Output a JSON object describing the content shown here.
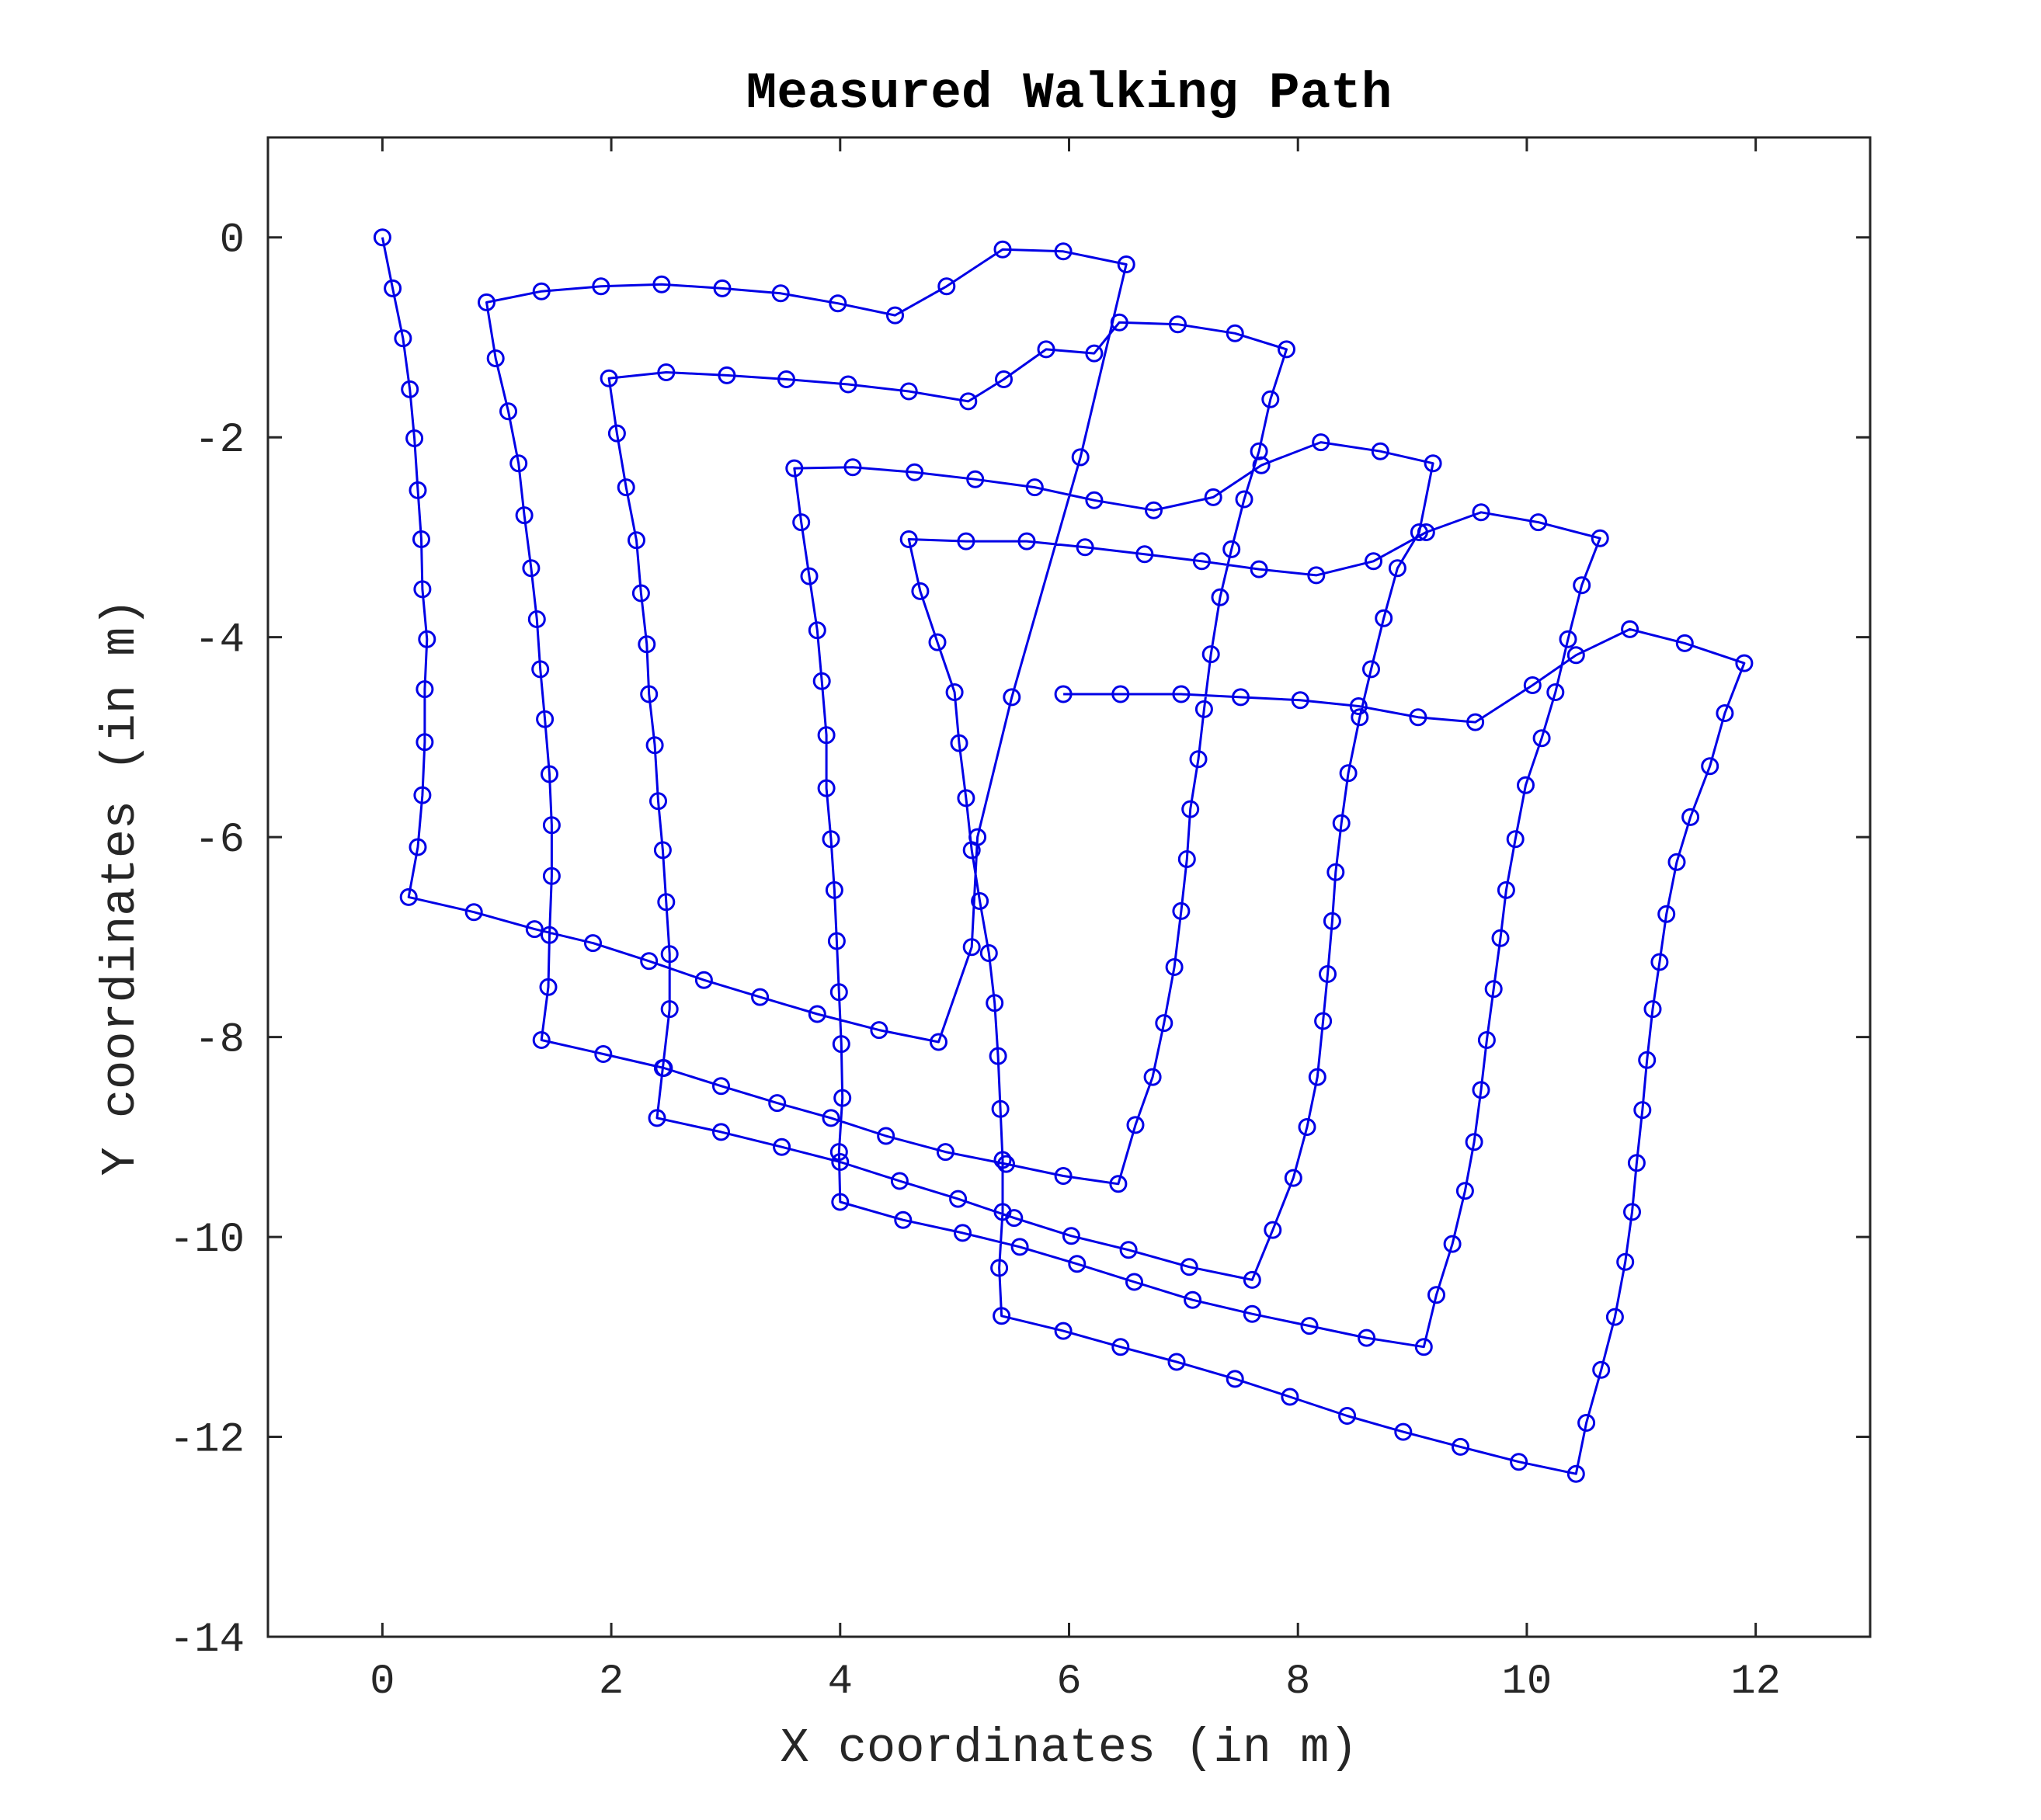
{
  "chart_data": {
    "type": "line",
    "title": "Measured Walking Path",
    "xlabel": "X coordinates (in m)",
    "ylabel": "Y coordinates (in m)",
    "xlim": [
      -1,
      13
    ],
    "ylim": [
      -14,
      1
    ],
    "xticks": [
      0,
      2,
      4,
      6,
      8,
      10,
      12
    ],
    "yticks": [
      0,
      -2,
      -4,
      -6,
      -8,
      -10,
      -12,
      -14
    ],
    "grid": false,
    "legend": "none",
    "marker": "circle",
    "colors": {
      "series": "#0000e6",
      "axes": "#262626",
      "background": "#ffffff"
    },
    "series": [
      {
        "points": [
          [
            0.0,
            0.0
          ],
          [
            0.09,
            -0.51
          ],
          [
            0.18,
            -1.01
          ],
          [
            0.24,
            -1.52
          ],
          [
            0.28,
            -2.01
          ],
          [
            0.31,
            -2.53
          ],
          [
            0.34,
            -3.02
          ],
          [
            0.35,
            -3.52
          ],
          [
            0.39,
            -4.02
          ],
          [
            0.37,
            -4.52
          ],
          [
            0.37,
            -5.05
          ],
          [
            0.35,
            -5.58
          ],
          [
            0.31,
            -6.1
          ],
          [
            0.23,
            -6.6
          ],
          [
            0.8,
            -6.75
          ],
          [
            1.33,
            -6.92
          ],
          [
            1.84,
            -7.06
          ],
          [
            2.33,
            -7.24
          ],
          [
            2.81,
            -7.43
          ],
          [
            3.3,
            -7.6
          ],
          [
            3.8,
            -7.77
          ],
          [
            4.34,
            -7.93
          ],
          [
            4.86,
            -8.05
          ],
          [
            5.15,
            -7.1
          ],
          [
            5.2,
            -6.0
          ],
          [
            5.5,
            -4.6
          ],
          [
            6.1,
            -2.2
          ],
          [
            6.5,
            -0.27
          ],
          [
            5.95,
            -0.14
          ],
          [
            5.42,
            -0.12
          ],
          [
            4.93,
            -0.49
          ],
          [
            4.48,
            -0.78
          ],
          [
            3.98,
            -0.66
          ],
          [
            3.48,
            -0.56
          ],
          [
            2.97,
            -0.51
          ],
          [
            2.44,
            -0.47
          ],
          [
            1.91,
            -0.49
          ],
          [
            1.39,
            -0.54
          ],
          [
            0.91,
            -0.65
          ],
          [
            0.99,
            -1.21
          ],
          [
            1.1,
            -1.74
          ],
          [
            1.19,
            -2.26
          ],
          [
            1.24,
            -2.78
          ],
          [
            1.3,
            -3.31
          ],
          [
            1.35,
            -3.82
          ],
          [
            1.38,
            -4.32
          ],
          [
            1.42,
            -4.82
          ],
          [
            1.46,
            -5.37
          ],
          [
            1.48,
            -5.88
          ],
          [
            1.48,
            -6.39
          ],
          [
            1.46,
            -6.98
          ],
          [
            1.45,
            -7.5
          ],
          [
            1.39,
            -8.03
          ],
          [
            1.93,
            -8.17
          ],
          [
            2.46,
            -8.31
          ],
          [
            2.96,
            -8.49
          ],
          [
            3.45,
            -8.66
          ],
          [
            3.92,
            -8.81
          ],
          [
            4.4,
            -8.99
          ],
          [
            4.92,
            -9.15
          ],
          [
            5.45,
            -9.27
          ],
          [
            5.95,
            -9.39
          ],
          [
            6.43,
            -9.47
          ],
          [
            6.58,
            -8.88
          ],
          [
            6.73,
            -8.4
          ],
          [
            6.83,
            -7.86
          ],
          [
            6.92,
            -7.3
          ],
          [
            6.98,
            -6.74
          ],
          [
            7.03,
            -6.22
          ],
          [
            7.06,
            -5.72
          ],
          [
            7.13,
            -5.22
          ],
          [
            7.18,
            -4.72
          ],
          [
            7.24,
            -4.17
          ],
          [
            7.32,
            -3.6
          ],
          [
            7.42,
            -3.12
          ],
          [
            7.53,
            -2.62
          ],
          [
            7.66,
            -2.14
          ],
          [
            7.76,
            -1.62
          ],
          [
            7.9,
            -1.12
          ],
          [
            7.45,
            -0.96
          ],
          [
            6.95,
            -0.87
          ],
          [
            6.44,
            -0.85
          ],
          [
            6.22,
            -1.16
          ],
          [
            5.8,
            -1.12
          ],
          [
            5.43,
            -1.42
          ],
          [
            5.12,
            -1.64
          ],
          [
            4.6,
            -1.54
          ],
          [
            4.07,
            -1.47
          ],
          [
            3.53,
            -1.42
          ],
          [
            3.01,
            -1.38
          ],
          [
            2.48,
            -1.35
          ],
          [
            1.98,
            -1.41
          ],
          [
            2.05,
            -1.96
          ],
          [
            2.13,
            -2.5
          ],
          [
            2.22,
            -3.03
          ],
          [
            2.26,
            -3.56
          ],
          [
            2.31,
            -4.07
          ],
          [
            2.33,
            -4.57
          ],
          [
            2.38,
            -5.08
          ],
          [
            2.41,
            -5.64
          ],
          [
            2.45,
            -6.13
          ],
          [
            2.48,
            -6.65
          ],
          [
            2.51,
            -7.17
          ],
          [
            2.51,
            -7.72
          ],
          [
            2.45,
            -8.31
          ],
          [
            2.4,
            -8.81
          ],
          [
            2.96,
            -8.95
          ],
          [
            3.49,
            -9.1
          ],
          [
            4.0,
            -9.25
          ],
          [
            4.52,
            -9.44
          ],
          [
            5.03,
            -9.62
          ],
          [
            5.52,
            -9.81
          ],
          [
            6.02,
            -9.99
          ],
          [
            6.52,
            -10.13
          ],
          [
            7.05,
            -10.3
          ],
          [
            7.6,
            -10.43
          ],
          [
            7.78,
            -9.93
          ],
          [
            7.96,
            -9.41
          ],
          [
            8.08,
            -8.9
          ],
          [
            8.17,
            -8.4
          ],
          [
            8.22,
            -7.84
          ],
          [
            8.26,
            -7.37
          ],
          [
            8.3,
            -6.84
          ],
          [
            8.33,
            -6.35
          ],
          [
            8.38,
            -5.86
          ],
          [
            8.44,
            -5.36
          ],
          [
            8.54,
            -4.8
          ],
          [
            8.64,
            -4.32
          ],
          [
            8.75,
            -3.81
          ],
          [
            8.87,
            -3.31
          ],
          [
            9.06,
            -2.95
          ],
          [
            9.18,
            -2.26
          ],
          [
            8.72,
            -2.14
          ],
          [
            8.2,
            -2.05
          ],
          [
            7.68,
            -2.28
          ],
          [
            7.26,
            -2.6
          ],
          [
            6.74,
            -2.73
          ],
          [
            6.22,
            -2.63
          ],
          [
            5.7,
            -2.5
          ],
          [
            5.18,
            -2.42
          ],
          [
            4.65,
            -2.35
          ],
          [
            4.11,
            -2.3
          ],
          [
            3.6,
            -2.31
          ],
          [
            3.66,
            -2.85
          ],
          [
            3.73,
            -3.39
          ],
          [
            3.8,
            -3.93
          ],
          [
            3.84,
            -4.44
          ],
          [
            3.88,
            -4.98
          ],
          [
            3.88,
            -5.51
          ],
          [
            3.92,
            -6.02
          ],
          [
            3.95,
            -6.53
          ],
          [
            3.97,
            -7.04
          ],
          [
            3.99,
            -7.55
          ],
          [
            4.01,
            -8.07
          ],
          [
            4.02,
            -8.61
          ],
          [
            3.99,
            -9.15
          ],
          [
            4.0,
            -9.65
          ],
          [
            4.55,
            -9.83
          ],
          [
            5.07,
            -9.96
          ],
          [
            5.57,
            -10.1
          ],
          [
            6.07,
            -10.27
          ],
          [
            6.57,
            -10.45
          ],
          [
            7.08,
            -10.63
          ],
          [
            7.6,
            -10.77
          ],
          [
            8.1,
            -10.89
          ],
          [
            8.6,
            -11.01
          ],
          [
            9.1,
            -11.1
          ],
          [
            9.21,
            -10.58
          ],
          [
            9.35,
            -10.07
          ],
          [
            9.46,
            -9.54
          ],
          [
            9.54,
            -9.05
          ],
          [
            9.6,
            -8.53
          ],
          [
            9.65,
            -8.03
          ],
          [
            9.71,
            -7.52
          ],
          [
            9.77,
            -7.01
          ],
          [
            9.82,
            -6.53
          ],
          [
            9.9,
            -6.02
          ],
          [
            9.99,
            -5.48
          ],
          [
            10.13,
            -5.01
          ],
          [
            10.25,
            -4.55
          ],
          [
            10.36,
            -4.02
          ],
          [
            10.48,
            -3.48
          ],
          [
            10.64,
            -3.01
          ],
          [
            10.1,
            -2.85
          ],
          [
            9.6,
            -2.75
          ],
          [
            9.12,
            -2.95
          ],
          [
            8.66,
            -3.24
          ],
          [
            8.16,
            -3.38
          ],
          [
            7.66,
            -3.32
          ],
          [
            7.16,
            -3.24
          ],
          [
            6.66,
            -3.17
          ],
          [
            6.14,
            -3.1
          ],
          [
            5.63,
            -3.04
          ],
          [
            5.1,
            -3.04
          ],
          [
            4.6,
            -3.02
          ],
          [
            4.7,
            -3.54
          ],
          [
            4.85,
            -4.05
          ],
          [
            5.0,
            -4.55
          ],
          [
            5.04,
            -5.06
          ],
          [
            5.1,
            -5.61
          ],
          [
            5.15,
            -6.13
          ],
          [
            5.22,
            -6.64
          ],
          [
            5.3,
            -7.16
          ],
          [
            5.35,
            -7.66
          ],
          [
            5.38,
            -8.19
          ],
          [
            5.4,
            -8.72
          ],
          [
            5.42,
            -9.23
          ],
          [
            5.42,
            -9.75
          ],
          [
            5.39,
            -10.31
          ],
          [
            5.41,
            -10.79
          ],
          [
            5.95,
            -10.94
          ],
          [
            6.45,
            -11.1
          ],
          [
            6.94,
            -11.25
          ],
          [
            7.45,
            -11.42
          ],
          [
            7.93,
            -11.6
          ],
          [
            8.43,
            -11.79
          ],
          [
            8.92,
            -11.95
          ],
          [
            9.42,
            -12.1
          ],
          [
            9.93,
            -12.25
          ],
          [
            10.43,
            -12.37
          ],
          [
            10.52,
            -11.86
          ],
          [
            10.65,
            -11.33
          ],
          [
            10.77,
            -10.8
          ],
          [
            10.86,
            -10.25
          ],
          [
            10.92,
            -9.75
          ],
          [
            10.96,
            -9.26
          ],
          [
            11.01,
            -8.73
          ],
          [
            11.05,
            -8.23
          ],
          [
            11.1,
            -7.72
          ],
          [
            11.16,
            -7.25
          ],
          [
            11.22,
            -6.77
          ],
          [
            11.31,
            -6.25
          ],
          [
            11.43,
            -5.8
          ],
          [
            11.6,
            -5.29
          ],
          [
            11.73,
            -4.76
          ],
          [
            11.9,
            -4.26
          ],
          [
            11.38,
            -4.06
          ],
          [
            10.9,
            -3.92
          ],
          [
            10.43,
            -4.18
          ],
          [
            10.05,
            -4.48
          ],
          [
            9.55,
            -4.85
          ],
          [
            9.05,
            -4.8
          ],
          [
            8.53,
            -4.69
          ],
          [
            8.02,
            -4.63
          ],
          [
            7.5,
            -4.6
          ],
          [
            6.98,
            -4.57
          ],
          [
            6.45,
            -4.57
          ],
          [
            5.95,
            -4.57
          ]
        ]
      }
    ]
  }
}
